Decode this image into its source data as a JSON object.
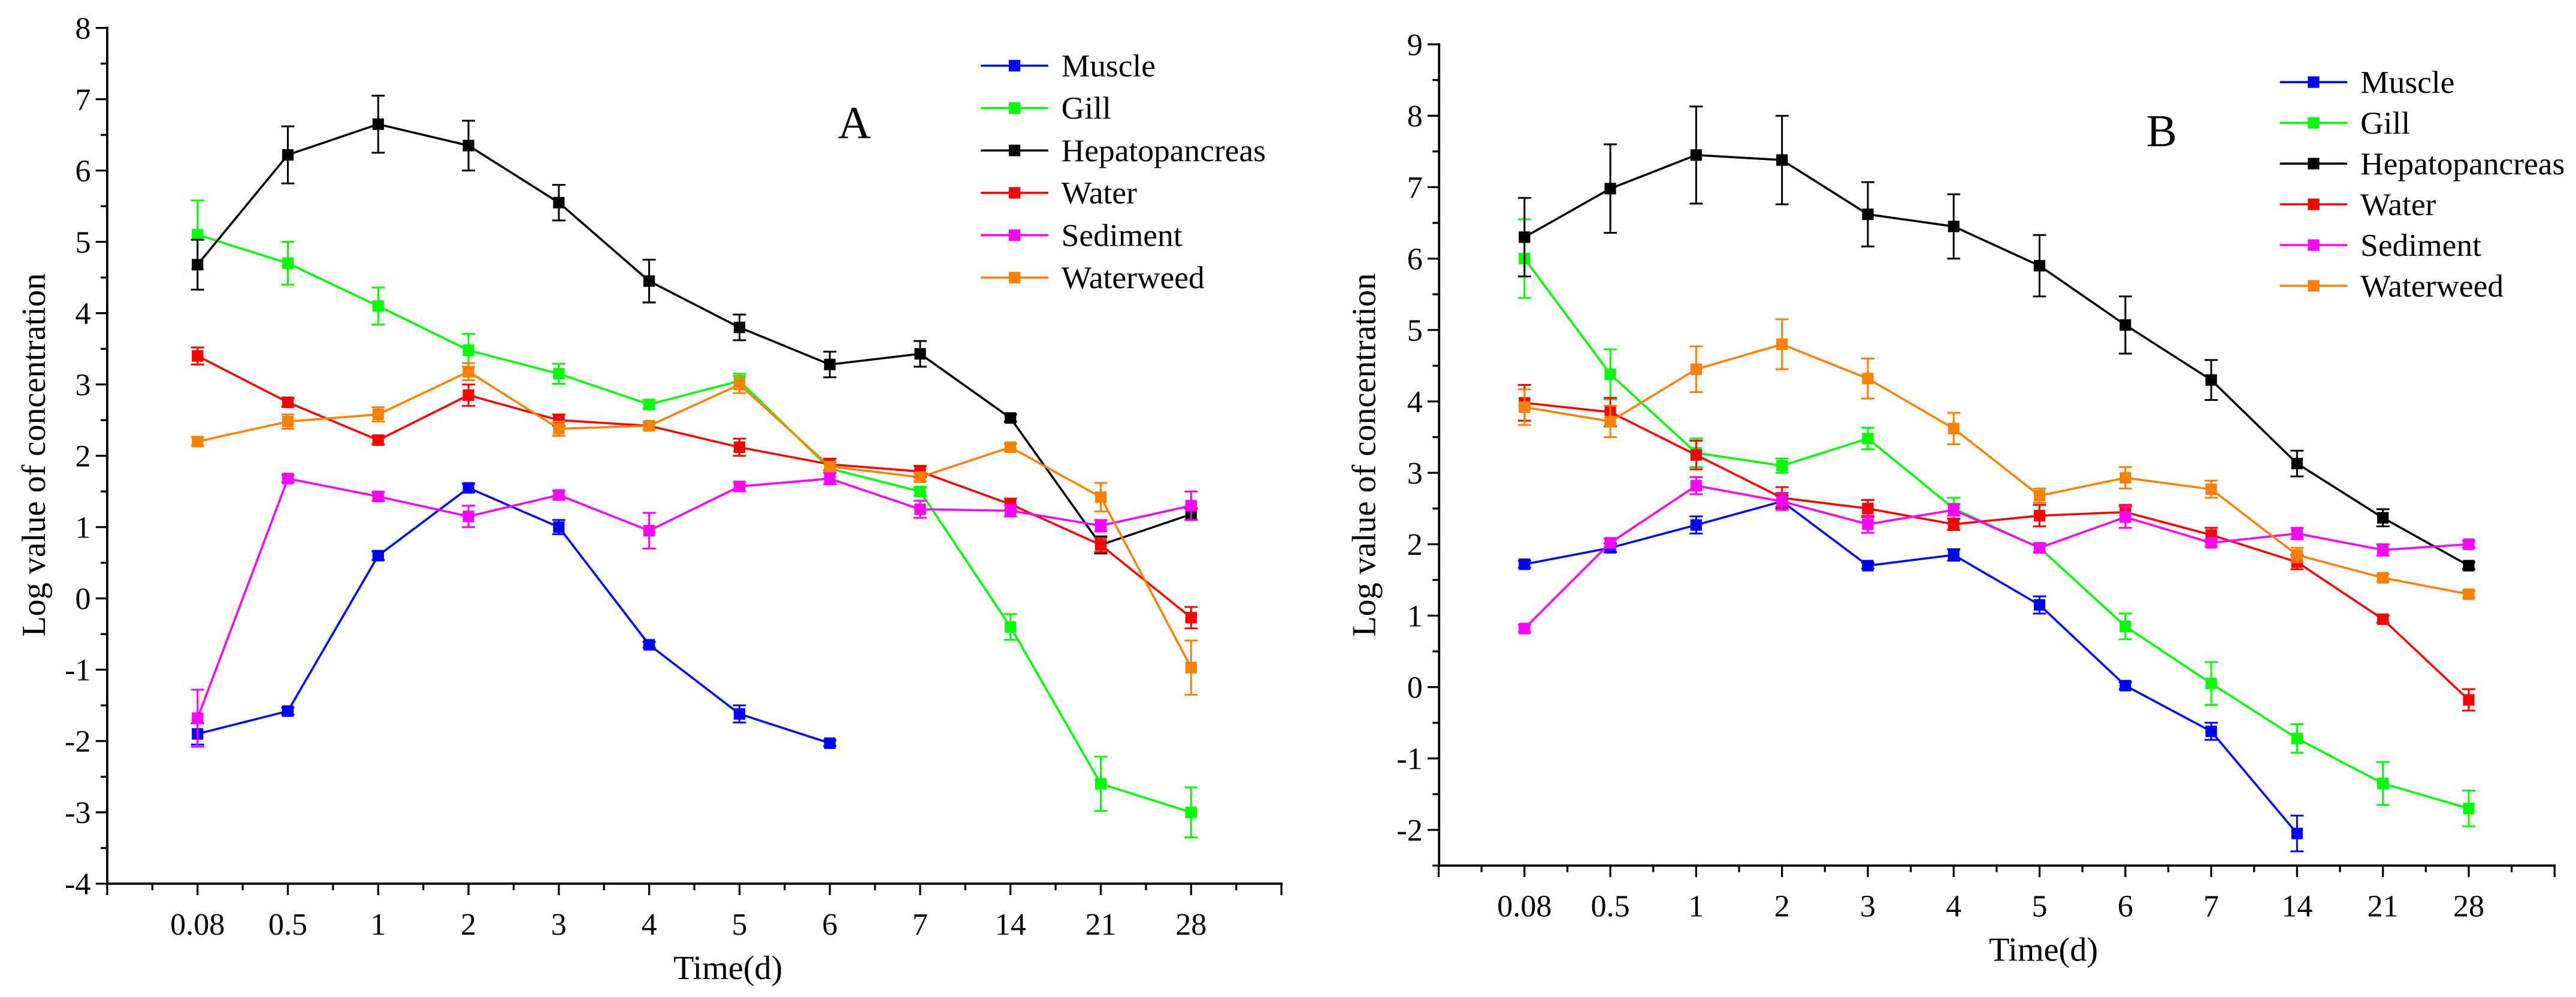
{
  "chart_data": [
    {
      "type": "line",
      "panel_label": "A",
      "title": "",
      "xlabel": "Time(d)",
      "ylabel": "Log value of concentration",
      "categories": [
        "0.08",
        "0.5",
        "1",
        "2",
        "3",
        "4",
        "5",
        "6",
        "7",
        "14",
        "21",
        "28"
      ],
      "ylim": [
        -4,
        8
      ],
      "yticks": [
        -4,
        -3,
        -2,
        -1,
        0,
        1,
        2,
        3,
        4,
        5,
        6,
        7,
        8
      ],
      "grid": false,
      "legend_position": "top-right",
      "series": [
        {
          "name": "Muscle",
          "color": "#0000ff",
          "values": [
            -1.9,
            -1.58,
            0.6,
            1.55,
            1.0,
            -0.65,
            -1.62,
            -2.03,
            null,
            null,
            null,
            null
          ],
          "errors": [
            0.15,
            0.05,
            0.06,
            0.06,
            0.1,
            0.04,
            0.12,
            0.04,
            null,
            null,
            null,
            null
          ]
        },
        {
          "name": "Gill",
          "color": "#00ff00",
          "values": [
            5.1,
            4.7,
            4.1,
            3.48,
            3.15,
            2.72,
            3.05,
            1.82,
            1.5,
            -0.4,
            -2.6,
            -3.0
          ],
          "errors": [
            0.48,
            0.3,
            0.26,
            0.23,
            0.14,
            0.06,
            0.1,
            0.06,
            0.06,
            0.18,
            0.38,
            0.35
          ]
        },
        {
          "name": "Hepatopancreas",
          "color": "#000000",
          "values": [
            4.68,
            6.22,
            6.65,
            6.35,
            5.55,
            4.45,
            3.8,
            3.28,
            3.43,
            2.53,
            0.75,
            1.18
          ],
          "errors": [
            0.35,
            0.4,
            0.4,
            0.35,
            0.25,
            0.3,
            0.18,
            0.18,
            0.18,
            0.05,
            0.12,
            0.08
          ]
        },
        {
          "name": "Water",
          "color": "#ff0000",
          "values": [
            3.4,
            2.75,
            2.22,
            2.85,
            2.5,
            2.42,
            2.12,
            1.88,
            1.78,
            1.32,
            0.75,
            -0.27
          ],
          "errors": [
            0.12,
            0.06,
            0.06,
            0.15,
            0.08,
            0.05,
            0.12,
            0.08,
            0.08,
            0.08,
            0.1,
            0.15
          ]
        },
        {
          "name": "Sediment",
          "color": "#ff00ff",
          "values": [
            -1.68,
            1.68,
            1.43,
            1.15,
            1.45,
            0.95,
            1.57,
            1.68,
            1.25,
            1.23,
            1.02,
            1.3
          ],
          "errors": [
            0.4,
            0.05,
            0.06,
            0.15,
            0.06,
            0.25,
            0.06,
            0.08,
            0.12,
            0.08,
            0.08,
            0.2
          ]
        },
        {
          "name": "Waterweed",
          "color": "#ff8000",
          "values": [
            2.2,
            2.48,
            2.58,
            3.18,
            2.38,
            2.42,
            3.0,
            1.85,
            1.7,
            2.12,
            1.42,
            -0.97
          ],
          "errors": [
            0.06,
            0.1,
            0.1,
            0.12,
            0.1,
            0.05,
            0.12,
            0.06,
            0.06,
            0.05,
            0.2,
            0.38
          ]
        }
      ]
    },
    {
      "type": "line",
      "panel_label": "B",
      "title": "",
      "xlabel": "Time(d)",
      "ylabel": "Log value of concentration",
      "categories": [
        "0.08",
        "0.5",
        "1",
        "2",
        "3",
        "4",
        "5",
        "6",
        "7",
        "14",
        "21",
        "28"
      ],
      "ylim": [
        -2.5,
        9
      ],
      "yticks": [
        -2,
        -1,
        0,
        1,
        2,
        3,
        4,
        5,
        6,
        7,
        8,
        9
      ],
      "grid": false,
      "legend_position": "top-right",
      "series": [
        {
          "name": "Muscle",
          "color": "#0000ff",
          "values": [
            1.72,
            1.95,
            2.27,
            2.6,
            1.7,
            1.85,
            1.15,
            0.02,
            -0.62,
            -2.05,
            null,
            null
          ],
          "errors": [
            0.05,
            0.06,
            0.12,
            0.08,
            0.04,
            0.08,
            0.12,
            0.05,
            0.12,
            0.25,
            null,
            null
          ]
        },
        {
          "name": "Gill",
          "color": "#00ff00",
          "values": [
            6.0,
            4.38,
            3.28,
            3.1,
            3.48,
            2.5,
            1.95,
            0.85,
            0.05,
            -0.72,
            -1.35,
            -1.7
          ],
          "errors": [
            0.55,
            0.35,
            0.2,
            0.1,
            0.15,
            0.15,
            0.06,
            0.18,
            0.3,
            0.2,
            0.3,
            0.25
          ]
        },
        {
          "name": "Hepatopancreas",
          "color": "#000000",
          "values": [
            6.3,
            6.98,
            7.45,
            7.38,
            6.62,
            6.45,
            5.9,
            5.07,
            4.3,
            3.13,
            2.37,
            1.7
          ],
          "errors": [
            0.55,
            0.62,
            0.68,
            0.62,
            0.45,
            0.45,
            0.43,
            0.4,
            0.28,
            0.18,
            0.12,
            0.05
          ]
        },
        {
          "name": "Water",
          "color": "#ff0000",
          "values": [
            3.98,
            3.85,
            3.25,
            2.65,
            2.5,
            2.28,
            2.4,
            2.45,
            2.13,
            1.75,
            0.95,
            -0.18
          ],
          "errors": [
            0.25,
            0.2,
            0.2,
            0.15,
            0.12,
            0.08,
            0.15,
            0.1,
            0.1,
            0.1,
            0.05,
            0.15
          ]
        },
        {
          "name": "Sediment",
          "color": "#ff00ff",
          "values": [
            0.82,
            2.02,
            2.82,
            2.6,
            2.28,
            2.48,
            1.95,
            2.38,
            2.02,
            2.15,
            1.92,
            2.0
          ],
          "errors": [
            0.05,
            0.06,
            0.12,
            0.12,
            0.12,
            0.08,
            0.06,
            0.15,
            0.05,
            0.08,
            0.08,
            0.05
          ]
        },
        {
          "name": "Waterweed",
          "color": "#ff8000",
          "values": [
            3.92,
            3.72,
            4.45,
            4.8,
            4.32,
            3.62,
            2.68,
            2.93,
            2.77,
            1.85,
            1.53,
            1.3
          ],
          "errors": [
            0.25,
            0.22,
            0.32,
            0.35,
            0.28,
            0.22,
            0.1,
            0.15,
            0.12,
            0.1,
            0.05,
            0.05
          ]
        }
      ]
    }
  ]
}
